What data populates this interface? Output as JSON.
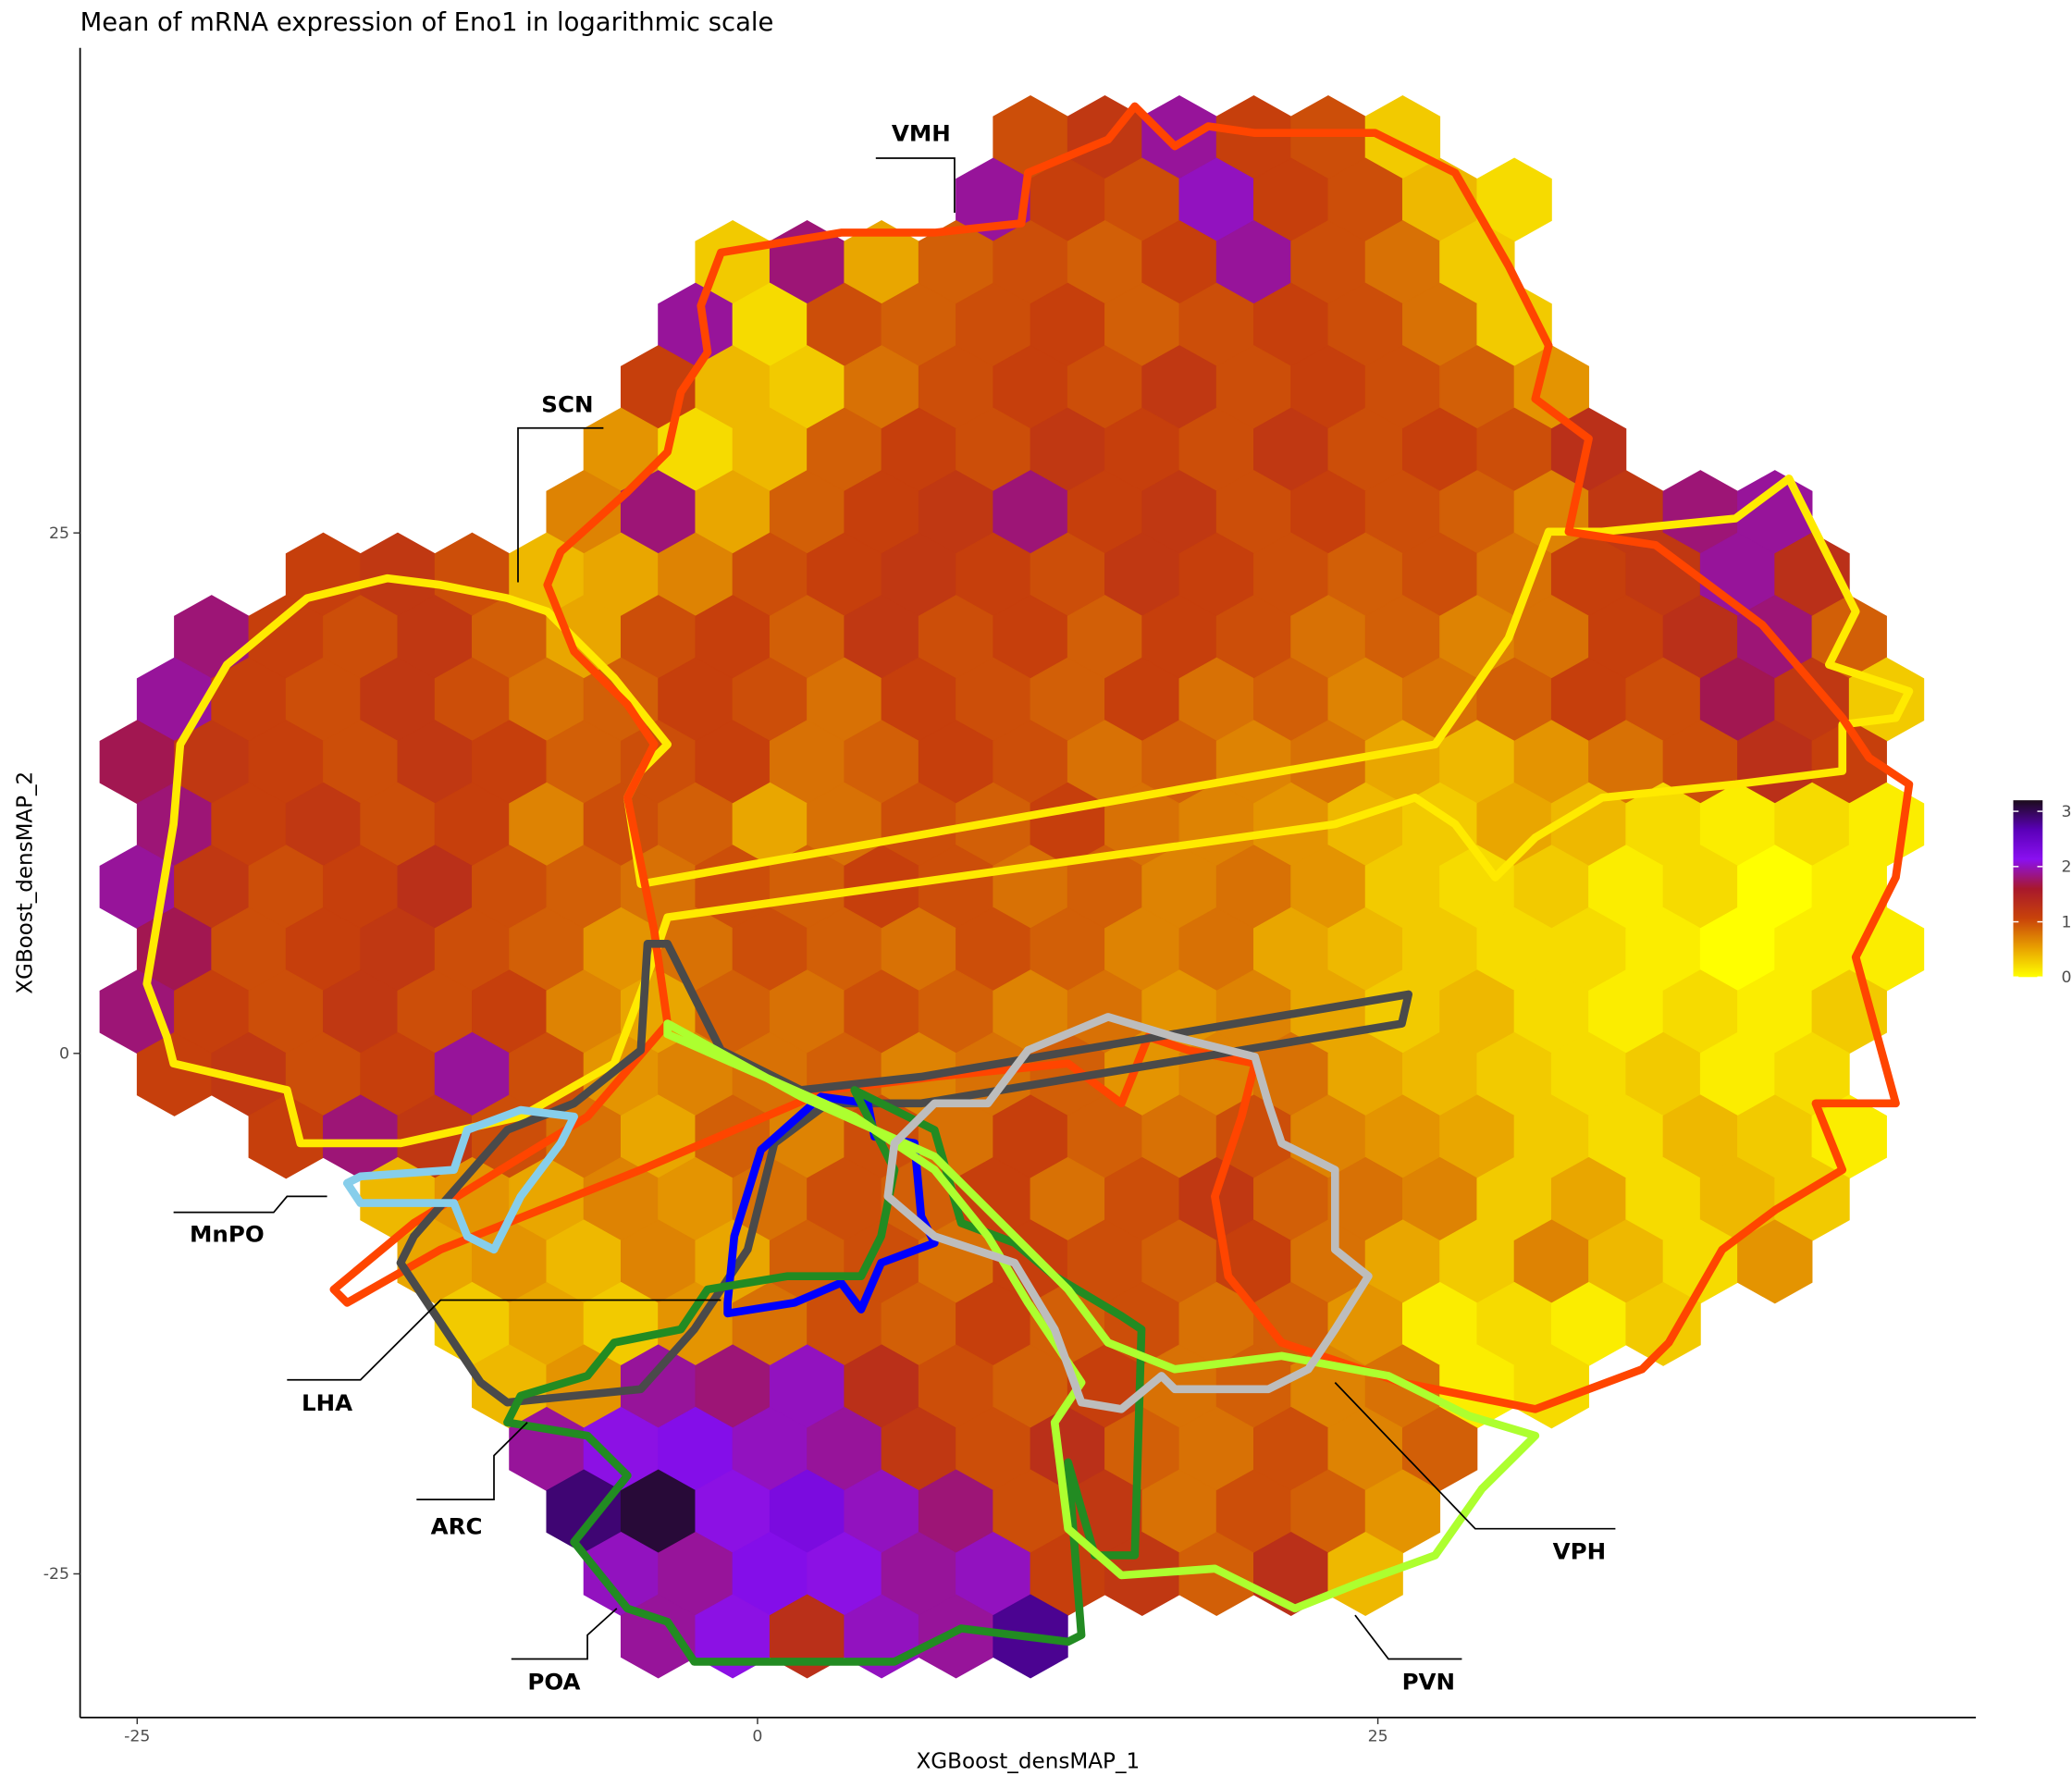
{
  "chart_data": {
    "type": "hexbin",
    "title": "Mean of mRNA expression of Eno1 in logarithmic scale",
    "x_label": "XGBoost_densMAP_1",
    "y_label": "XGBoost_densMAP_2",
    "xlim": [
      -27.3,
      49.1
    ],
    "ylim": [
      -31.9,
      48.3
    ],
    "xticks": [
      -25,
      0,
      25
    ],
    "yticks": [
      -25,
      0,
      25
    ],
    "grid": false,
    "binwidth": [
      3,
      3
    ],
    "clim": [
      0,
      3.2
    ],
    "colors": [
      "#ffff00",
      "#e8a000",
      "#c8420a",
      "#a8182c",
      "#8a10f0",
      "#5a00b8",
      "#1c0c1a"
    ],
    "colorbar_ticks": [
      0,
      1,
      2,
      3
    ],
    "annotations": [
      "VMH",
      "SCN",
      "MnPO",
      "LHA",
      "ARC",
      "POA",
      "PVN",
      "VPH"
    ],
    "hexes": [
      {
        "y": 44,
        "x": [
          11,
          14,
          17,
          20,
          23,
          26
        ],
        "values": [
          1.0,
          1.2,
          1.9,
          1.1,
          1.0,
          0.3
        ]
      },
      {
        "y": 41,
        "x": [
          9.5,
          12.5,
          15.5,
          18.5,
          21.5,
          24.5,
          27.5,
          30.5
        ],
        "values": [
          1.9,
          1.1,
          1.0,
          2.0,
          1.1,
          1.0,
          0.4,
          0.2
        ]
      },
      {
        "y": 38,
        "x": [
          -1,
          2,
          5,
          8,
          11,
          14,
          17,
          20,
          23,
          26,
          29
        ],
        "values": [
          0.3,
          1.8,
          0.5,
          0.9,
          1.0,
          0.9,
          1.1,
          1.9,
          1.0,
          0.8,
          0.3
        ]
      },
      {
        "y": 35,
        "x": [
          -2.5,
          0.5,
          3.5,
          6.5,
          9.5,
          12.5,
          15.5,
          18.5,
          21.5,
          24.5,
          27.5,
          30.5
        ],
        "values": [
          1.9,
          0.2,
          1.0,
          0.9,
          1.0,
          1.1,
          0.9,
          1.0,
          1.1,
          1.0,
          0.8,
          0.3
        ]
      },
      {
        "y": 32,
        "x": [
          -4,
          -1,
          2,
          5,
          8,
          11,
          14,
          17,
          20,
          23,
          26,
          29,
          32
        ],
        "values": [
          1.1,
          0.4,
          0.3,
          0.8,
          1.0,
          1.1,
          1.0,
          1.2,
          1.0,
          1.1,
          1.0,
          0.9,
          0.6
        ]
      },
      {
        "y": 29,
        "x": [
          -5.5,
          -2.5,
          0.5,
          3.5,
          6.5,
          9.5,
          12.5,
          15.5,
          18.5,
          21.5,
          24.5,
          27.5,
          30.5,
          33.5
        ],
        "values": [
          0.6,
          0.2,
          0.4,
          0.9,
          1.1,
          1.0,
          1.2,
          1.1,
          1.0,
          1.2,
          1.0,
          1.1,
          1.0,
          1.3
        ]
      },
      {
        "y": 26,
        "x": [
          -7,
          -4,
          -1,
          2,
          5,
          8,
          11,
          14,
          17,
          20,
          23,
          26,
          29,
          32,
          35,
          38,
          41
        ],
        "values": [
          0.7,
          1.8,
          0.5,
          0.9,
          1.1,
          1.2,
          1.8,
          1.1,
          1.2,
          1.0,
          1.1,
          1.0,
          0.9,
          0.7,
          1.2,
          1.8,
          1.9
        ]
      },
      {
        "y": 23,
        "x": [
          -17.5,
          -14.5,
          -11.5,
          -8.5,
          -5.5,
          -2.5,
          0.5,
          3.5,
          6.5,
          9.5,
          12.5,
          15.5,
          18.5,
          21.5,
          24.5,
          27.5,
          30.5,
          33.5,
          36.5,
          39.5,
          42.5
        ],
        "values": [
          1.1,
          1.2,
          1.0,
          0.4,
          0.5,
          0.7,
          1.0,
          1.1,
          1.2,
          1.1,
          1.0,
          1.2,
          1.1,
          1.0,
          0.9,
          1.0,
          0.8,
          1.1,
          1.2,
          1.9,
          1.3
        ]
      },
      {
        "y": 20,
        "x": [
          -22,
          -19,
          -16,
          -13,
          -10,
          -7,
          -4,
          -1,
          2,
          5,
          8,
          11,
          14,
          17,
          20,
          23,
          26,
          29,
          32,
          35,
          38,
          41,
          44
        ],
        "values": [
          1.8,
          1.1,
          1.0,
          1.2,
          0.9,
          0.5,
          1.0,
          1.1,
          0.9,
          1.2,
          1.0,
          1.1,
          0.9,
          1.1,
          1.0,
          0.8,
          0.9,
          0.7,
          0.8,
          1.1,
          1.3,
          1.8,
          0.9
        ]
      },
      {
        "y": 17,
        "x": [
          -23.5,
          -20.5,
          -17.5,
          -14.5,
          -11.5,
          -8.5,
          -5.5,
          -2.5,
          0.5,
          3.5,
          6.5,
          9.5,
          12.5,
          15.5,
          18.5,
          21.5,
          24.5,
          27.5,
          30.5,
          33.5,
          36.5,
          39.5,
          42.5,
          45.5
        ],
        "values": [
          1.9,
          1.1,
          1.0,
          1.2,
          1.0,
          0.8,
          0.9,
          1.1,
          1.0,
          0.8,
          1.1,
          1.0,
          0.9,
          1.1,
          0.8,
          0.9,
          0.7,
          0.8,
          0.9,
          1.1,
          1.0,
          1.7,
          1.2,
          0.3
        ]
      },
      {
        "y": 14,
        "x": [
          -25,
          -22,
          -19,
          -16,
          -13,
          -10,
          -7,
          -4,
          -1,
          2,
          5,
          8,
          11,
          14,
          17,
          20,
          23,
          26,
          29,
          32,
          35,
          38,
          41,
          44
        ],
        "values": [
          1.7,
          1.2,
          1.1,
          1.0,
          1.2,
          1.1,
          0.9,
          1.0,
          1.1,
          0.8,
          0.9,
          1.1,
          1.0,
          0.8,
          0.9,
          0.7,
          0.8,
          0.5,
          0.4,
          0.6,
          0.8,
          1.0,
          1.3,
          1.1
        ]
      },
      {
        "y": 11,
        "x": [
          -23.5,
          -20.5,
          -17.5,
          -14.5,
          -11.5,
          -8.5,
          -5.5,
          -2.5,
          0.5,
          3.5,
          6.5,
          9.5,
          12.5,
          15.5,
          18.5,
          21.5,
          24.5,
          27.5,
          30.5,
          33.5,
          36.5,
          39.5,
          42.5,
          45.5
        ],
        "values": [
          1.8,
          1.1,
          1.2,
          1.0,
          1.1,
          0.7,
          1.0,
          0.9,
          0.5,
          0.8,
          1.0,
          0.9,
          1.1,
          0.8,
          0.7,
          0.6,
          0.4,
          0.3,
          0.5,
          0.4,
          0.2,
          0.1,
          0.2,
          0.1
        ]
      },
      {
        "y": 8,
        "x": [
          -25,
          -22,
          -19,
          -16,
          -13,
          -10,
          -7,
          -4,
          -1,
          2,
          5,
          8,
          11,
          14,
          17,
          20,
          23,
          26,
          29,
          32,
          35,
          38,
          41,
          44
        ],
        "values": [
          1.9,
          1.2,
          1.0,
          1.1,
          1.3,
          1.0,
          0.9,
          0.8,
          1.0,
          0.9,
          1.1,
          1.0,
          0.8,
          0.9,
          0.7,
          0.8,
          0.6,
          0.3,
          0.2,
          0.3,
          0.1,
          0.2,
          0.0,
          0.1
        ]
      },
      {
        "y": 5,
        "x": [
          -23.5,
          -20.5,
          -17.5,
          -14.5,
          -11.5,
          -8.5,
          -5.5,
          -2.5,
          0.5,
          3.5,
          6.5,
          9.5,
          12.5,
          15.5,
          18.5,
          21.5,
          24.5,
          27.5,
          30.5,
          33.5,
          36.5,
          39.5,
          42.5,
          45.5
        ],
        "values": [
          1.7,
          1.0,
          1.1,
          1.2,
          1.0,
          0.9,
          0.6,
          0.8,
          1.0,
          0.9,
          0.8,
          1.0,
          0.9,
          0.7,
          0.8,
          0.5,
          0.4,
          0.3,
          0.2,
          0.2,
          0.1,
          0.0,
          0.1,
          0.1
        ]
      },
      {
        "y": 2,
        "x": [
          -25,
          -22,
          -19,
          -16,
          -13,
          -10,
          -7,
          -4,
          -1,
          2,
          5,
          8,
          11,
          14,
          17,
          20,
          23,
          26,
          29,
          32,
          35,
          38,
          41,
          44
        ],
        "values": [
          1.8,
          1.1,
          1.0,
          1.2,
          1.0,
          1.1,
          0.7,
          0.5,
          0.9,
          0.8,
          1.0,
          0.9,
          0.7,
          0.8,
          0.6,
          0.7,
          0.5,
          0.3,
          0.4,
          0.2,
          0.1,
          0.2,
          0.1,
          0.3
        ]
      },
      {
        "y": -1,
        "x": [
          -23.5,
          -20.5,
          -17.5,
          -14.5,
          -11.5,
          -8.5,
          -5.5,
          -2.5,
          0.5,
          3.5,
          6.5,
          9.5,
          12.5,
          15.5,
          18.5,
          21.5,
          24.5,
          27.5,
          30.5,
          33.5,
          36.5,
          39.5,
          42.5
        ],
        "values": [
          1.1,
          1.2,
          1.0,
          1.1,
          1.9,
          1.0,
          0.6,
          0.7,
          0.8,
          0.9,
          0.7,
          0.8,
          0.9,
          0.6,
          0.7,
          0.8,
          0.5,
          0.4,
          0.3,
          0.2,
          0.3,
          0.1,
          0.2
        ]
      },
      {
        "y": -4,
        "x": [
          -19,
          -16,
          -13,
          -10,
          -7,
          -4,
          -1,
          2,
          5,
          8,
          11,
          14,
          17,
          20,
          23,
          26,
          29,
          32,
          35,
          38,
          41,
          44
        ],
        "values": [
          1.1,
          1.8,
          1.2,
          1.0,
          0.8,
          0.5,
          0.9,
          0.7,
          1.0,
          0.8,
          1.1,
          0.9,
          0.8,
          1.0,
          0.7,
          0.6,
          0.5,
          0.3,
          0.2,
          0.4,
          0.3,
          0.1
        ]
      },
      {
        "y": -7,
        "x": [
          -14.5,
          -11.5,
          -8.5,
          -5.5,
          -2.5,
          0.5,
          3.5,
          6.5,
          9.5,
          12.5,
          15.5,
          18.5,
          21.5,
          24.5,
          27.5,
          30.5,
          33.5,
          36.5,
          39.5,
          42.5
        ],
        "values": [
          0.4,
          0.6,
          0.5,
          0.7,
          0.6,
          0.8,
          1.0,
          0.9,
          1.1,
          0.8,
          1.0,
          1.2,
          0.9,
          0.8,
          0.7,
          0.3,
          0.5,
          0.2,
          0.4,
          0.3
        ]
      },
      {
        "y": -10,
        "x": [
          -13,
          -10,
          -7,
          -4,
          -1,
          2,
          5,
          8,
          11,
          14,
          17,
          20,
          23,
          26,
          29,
          32,
          35,
          38,
          41
        ],
        "values": [
          0.5,
          0.6,
          0.4,
          0.7,
          0.5,
          0.9,
          1.0,
          0.8,
          1.1,
          1.0,
          0.9,
          1.1,
          0.8,
          0.5,
          0.3,
          0.7,
          0.4,
          0.2,
          0.6
        ]
      },
      {
        "y": -13,
        "x": [
          -11.5,
          -8.5,
          -5.5,
          -2.5,
          0.5,
          3.5,
          6.5,
          9.5,
          12.5,
          15.5,
          18.5,
          21.5,
          24.5,
          27.5,
          30.5,
          33.5,
          36.5
        ],
        "values": [
          0.3,
          0.5,
          0.3,
          0.6,
          0.8,
          1.0,
          0.9,
          1.1,
          0.9,
          1.0,
          0.8,
          0.9,
          0.6,
          0.1,
          0.2,
          0.1,
          0.3
        ]
      },
      {
        "y": -16,
        "x": [
          -10,
          -7,
          -4,
          -1,
          2,
          5,
          8,
          11,
          14,
          17,
          20,
          23,
          26,
          29,
          32
        ],
        "values": [
          0.4,
          0.6,
          1.9,
          1.8,
          2.0,
          1.3,
          1.0,
          0.9,
          1.1,
          0.8,
          0.9,
          0.7,
          0.8,
          0.1,
          0.2
        ]
      },
      {
        "y": -19,
        "x": [
          -8.5,
          -5.5,
          -2.5,
          0.5,
          3.5,
          6.5,
          9.5,
          12.5,
          15.5,
          18.5,
          21.5,
          24.5,
          27.5
        ],
        "values": [
          1.9,
          2.1,
          2.2,
          2.0,
          1.9,
          1.2,
          1.0,
          1.3,
          0.9,
          0.8,
          1.0,
          0.7,
          0.9
        ]
      },
      {
        "y": -22,
        "x": [
          -7,
          -4,
          -1,
          2,
          5,
          8,
          11,
          14,
          17,
          20,
          23,
          26
        ],
        "values": [
          2.9,
          3.1,
          2.1,
          2.3,
          2.0,
          1.8,
          1.0,
          1.2,
          0.8,
          1.0,
          0.9,
          0.6
        ]
      },
      {
        "y": -25,
        "x": [
          -5.5,
          -2.5,
          0.5,
          3.5,
          6.5,
          9.5,
          12.5,
          15.5,
          18.5,
          21.5,
          24.5
        ],
        "values": [
          2.0,
          1.9,
          2.2,
          2.1,
          1.9,
          2.0,
          1.1,
          1.2,
          0.9,
          1.3,
          0.4
        ]
      },
      {
        "y": -28,
        "x": [
          -4,
          -1,
          2,
          5,
          8,
          11
        ],
        "values": [
          1.9,
          2.1,
          1.3,
          2.0,
          1.9,
          2.8
        ]
      }
    ]
  }
}
